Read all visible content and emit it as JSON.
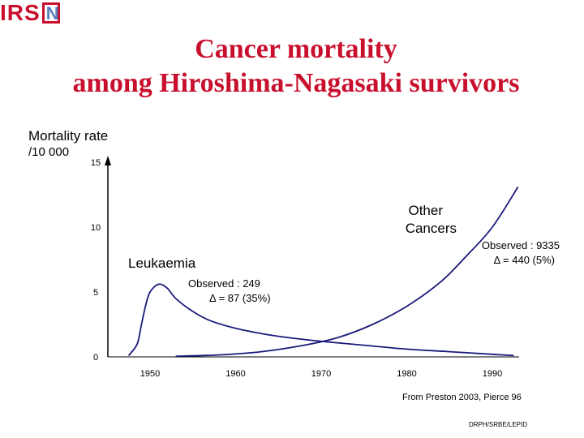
{
  "header": {
    "logo_text": "IRS",
    "logo_box_letter": "N",
    "title_line1": "Cancer mortality",
    "title_line2": "among Hiroshima-Nagasaki survivors"
  },
  "colors": {
    "title": "#c8102e",
    "curves": "#1a1a7a",
    "logo_box_letter": "#5b7fbf"
  },
  "chart_data": {
    "type": "line",
    "ylabel": "Mortality rate",
    "yunit": "/10 000",
    "xlim": [
      1946,
      1994
    ],
    "ylim": [
      0,
      15
    ],
    "yticks": [
      "0",
      "5",
      "10",
      "15"
    ],
    "xticks": [
      "1950",
      "1960",
      "1970",
      "1980",
      "1990"
    ],
    "series": [
      {
        "name": "Leukaemia",
        "x": [
          1947.5,
          1948.5,
          1949.0,
          1949.5,
          1950.0,
          1951.0,
          1952.0,
          1953.0,
          1955.0,
          1957.0,
          1960.0,
          1963.0,
          1966.0,
          1970.0,
          1975.0,
          1980.0,
          1985.0,
          1990.0,
          1992.5
        ],
        "y": [
          0.1,
          1.0,
          2.5,
          4.0,
          5.0,
          5.6,
          5.3,
          4.5,
          3.5,
          2.8,
          2.2,
          1.8,
          1.5,
          1.2,
          0.9,
          0.6,
          0.4,
          0.2,
          0.1
        ]
      },
      {
        "name": "Other Cancers",
        "x": [
          1953.0,
          1958.0,
          1963.0,
          1968.0,
          1972.0,
          1976.0,
          1980.0,
          1984.0,
          1987.0,
          1990.0,
          1993.0
        ],
        "y": [
          0.05,
          0.15,
          0.4,
          0.9,
          1.5,
          2.5,
          3.9,
          5.8,
          7.8,
          10.0,
          13.1
        ]
      }
    ],
    "annotations": [
      {
        "text": "Leukaemia"
      },
      {
        "text": "Observed : 249"
      },
      {
        "text": "Δ = 87 (35%)"
      },
      {
        "text": "Other"
      },
      {
        "text": "Cancers"
      },
      {
        "text": "Observed : 9335"
      },
      {
        "text": "Δ = 440 (5%)"
      }
    ]
  },
  "footer": {
    "source": "From Preston 2003, Pierce 96",
    "credit": "DRPH/SRBE/LEPID"
  }
}
